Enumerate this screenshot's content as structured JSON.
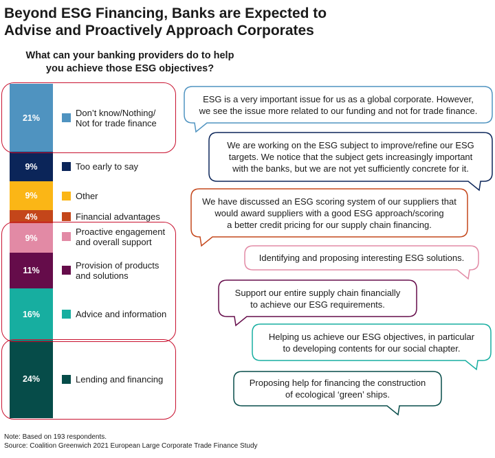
{
  "title_lines": [
    "Beyond ESG Financing, Banks are Expected to",
    "Advise and Proactively Approach Corporates"
  ],
  "chart_data": {
    "type": "bar",
    "stacked": true,
    "title": "What can your banking providers do to help you achieve those ESG objectives?",
    "subtitle_lines": [
      "What can your banking providers do to help",
      "you achieve those ESG objectives?"
    ],
    "categories": [
      "Don’t know/Nothing/Not for trade finance",
      "Too early to say",
      "Other",
      "Financial advantages",
      "Proactive engagement and overall support",
      "Provision of products and solutions",
      "Advice and information",
      "Lending and financing"
    ],
    "values": [
      21,
      9,
      9,
      4,
      9,
      11,
      16,
      24
    ],
    "value_labels": [
      "21%",
      "9%",
      "9%",
      "4%",
      "9%",
      "11%",
      "16%",
      "24%"
    ],
    "legend_lines": [
      [
        "Don’t know/Nothing/",
        "Not for trade finance"
      ],
      [
        "Too early to say"
      ],
      [
        "Other"
      ],
      [
        "Financial advantages"
      ],
      [
        "Proactive engagement",
        "and overall support"
      ],
      [
        "Provision of products",
        "and solutions"
      ],
      [
        "Advice and information"
      ],
      [
        "Lending and financing"
      ]
    ],
    "colors": [
      "#4f93c0",
      "#0b2559",
      "#fbb616",
      "#c4461a",
      "#e28aa5",
      "#650c4a",
      "#17aea0",
      "#064c49"
    ],
    "group_highlight_color": "#c8102e",
    "legend_placement": "right"
  },
  "quotes": [
    {
      "lines": [
        "ESG is a very important issue for us as a global corporate. However,",
        "we see the issue more related to our funding and not for trade finance."
      ],
      "color": "#4f93c0"
    },
    {
      "lines": [
        "We are working on the ESG subject to improve/refine our ESG",
        "targets. We notice that the subject gets increasingly important",
        "with the banks, but we are not yet sufficiently concrete for it."
      ],
      "color": "#0b2559"
    },
    {
      "lines": [
        "We have discussed an ESG scoring system of our suppliers that",
        "would award suppliers with a good ESG approach/scoring",
        "a better credit pricing for our supply chain financing."
      ],
      "color": "#c4461a"
    },
    {
      "lines": [
        "Identifying and proposing interesting ESG solutions."
      ],
      "color": "#e28aa5"
    },
    {
      "lines": [
        "Support our entire supply chain financially",
        "to achieve our ESG requirements."
      ],
      "color": "#650c4a"
    },
    {
      "lines": [
        "Helping us achieve our ESG objectives, in particular",
        "to developing contents for our social chapter."
      ],
      "color": "#17aea0"
    },
    {
      "lines": [
        "Proposing help for financing the construction",
        "of ecological ‘green’ ships."
      ],
      "color": "#064c49"
    }
  ],
  "footer": {
    "note": "Note: Based on 193 respondents.",
    "source": "Source: Coalition Greenwich 2021 European Large Corporate Trade Finance Study"
  }
}
